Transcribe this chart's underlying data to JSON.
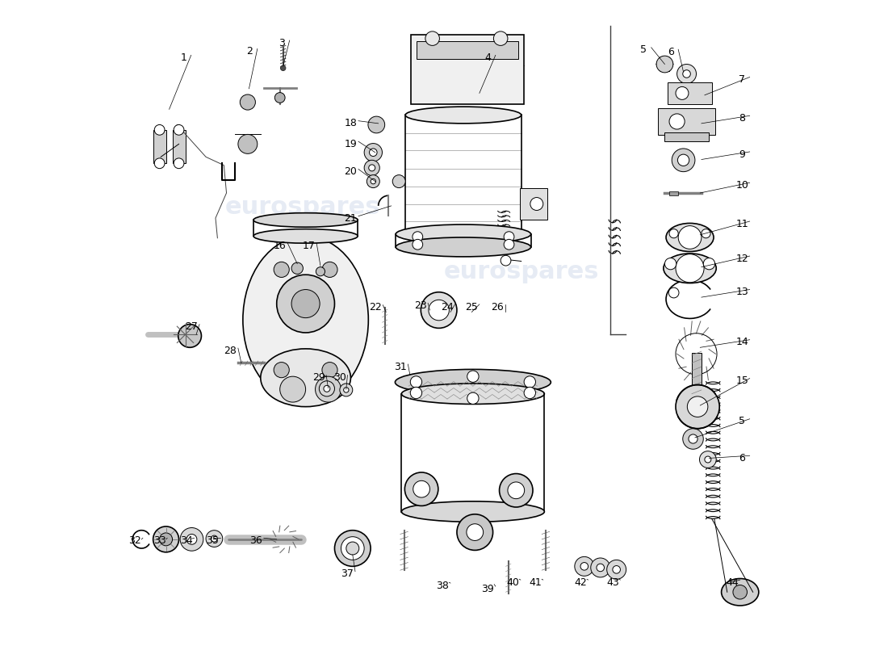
{
  "background_color": "#ffffff",
  "line_color": "#000000",
  "watermark_text": "eurospares",
  "watermark_color": "#c8d4e8",
  "watermark_alpha": 0.45,
  "fig_width": 11.0,
  "fig_height": 8.0,
  "dpi": 100,
  "font_size_labels": 9,
  "font_family": "DejaVu Sans"
}
